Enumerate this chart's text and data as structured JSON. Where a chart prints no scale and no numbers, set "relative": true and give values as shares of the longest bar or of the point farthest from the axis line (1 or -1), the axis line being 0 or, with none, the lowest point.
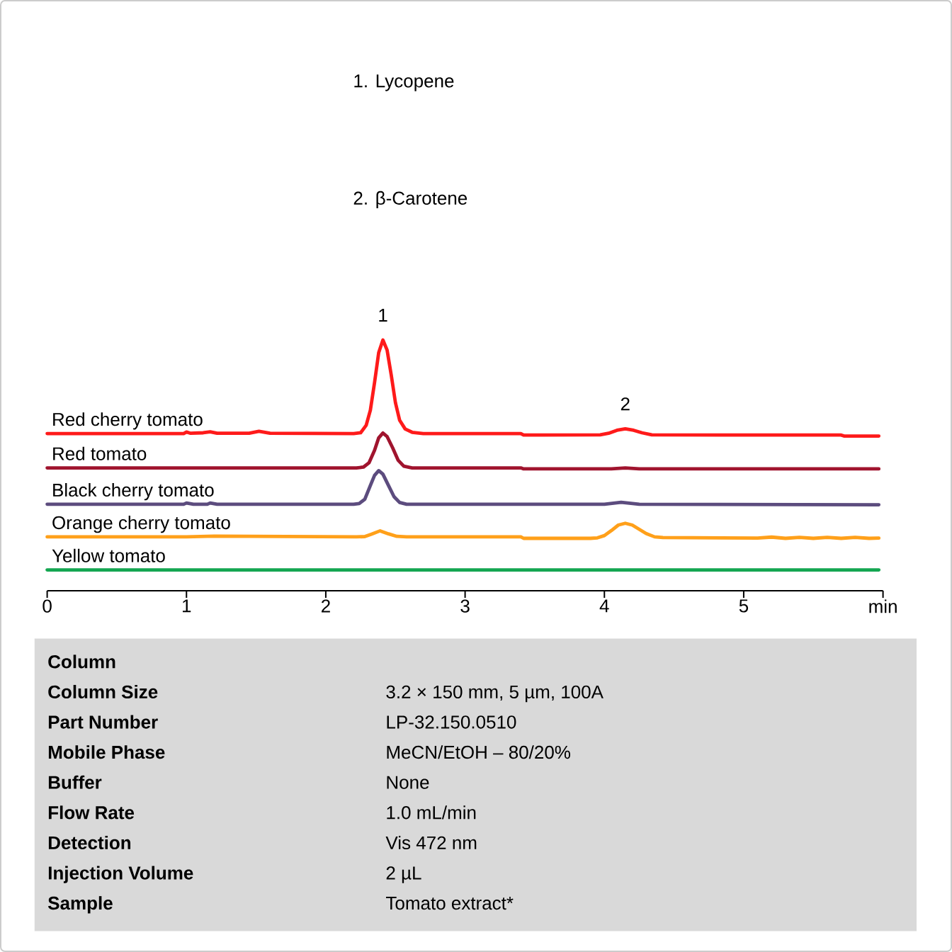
{
  "chart_data": {
    "type": "line",
    "relative": true,
    "xlim": [
      0,
      6
    ],
    "xticks": [
      0,
      1,
      2,
      3,
      4,
      5,
      {
        "value": 6,
        "label": "min"
      }
    ],
    "series": [
      {
        "name": "Red cherry tomato",
        "color": "#fe1a1a",
        "x": [
          0,
          0.5,
          0.98,
          1.0,
          1.03,
          1.12,
          1.17,
          1.22,
          1.45,
          1.52,
          1.6,
          2.2,
          2.25,
          2.29,
          2.32,
          2.35,
          2.38,
          2.41,
          2.44,
          2.47,
          2.5,
          2.53,
          2.57,
          2.62,
          2.7,
          3.4,
          3.42,
          3.97,
          4.03,
          4.09,
          4.15,
          4.21,
          4.27,
          4.34,
          5.1,
          5.7,
          5.72,
          5.97
        ],
        "values": [
          0.627,
          0.627,
          0.627,
          0.633,
          0.628,
          0.63,
          0.634,
          0.628,
          0.628,
          0.636,
          0.628,
          0.627,
          0.63,
          0.66,
          0.72,
          0.83,
          0.95,
          1.0,
          0.96,
          0.86,
          0.75,
          0.68,
          0.645,
          0.632,
          0.627,
          0.627,
          0.621,
          0.622,
          0.628,
          0.64,
          0.646,
          0.64,
          0.63,
          0.622,
          0.621,
          0.621,
          0.617,
          0.617
        ]
      },
      {
        "name": "Red tomato",
        "color": "#a0142e",
        "x": [
          0,
          1.0,
          1.7,
          2.22,
          2.27,
          2.31,
          2.35,
          2.38,
          2.41,
          2.44,
          2.48,
          2.52,
          2.56,
          2.62,
          3.4,
          3.42,
          4.05,
          4.15,
          4.25,
          5.97
        ],
        "values": [
          0.49,
          0.49,
          0.49,
          0.49,
          0.493,
          0.51,
          0.56,
          0.61,
          0.629,
          0.615,
          0.57,
          0.52,
          0.497,
          0.49,
          0.49,
          0.486,
          0.486,
          0.49,
          0.486,
          0.486
        ]
      },
      {
        "name": "Black cherry tomato",
        "color": "#5c4c7e",
        "x": [
          0,
          0.98,
          1.0,
          1.05,
          1.15,
          1.17,
          1.22,
          2.2,
          2.24,
          2.28,
          2.32,
          2.35,
          2.38,
          2.41,
          2.45,
          2.49,
          2.53,
          2.58,
          3.4,
          4.0,
          4.12,
          4.25,
          5.97
        ],
        "values": [
          0.345,
          0.345,
          0.35,
          0.345,
          0.345,
          0.35,
          0.345,
          0.345,
          0.348,
          0.365,
          0.42,
          0.46,
          0.479,
          0.465,
          0.42,
          0.375,
          0.352,
          0.345,
          0.345,
          0.345,
          0.353,
          0.345,
          0.343
        ]
      },
      {
        "name": "Orange cherry tomato",
        "color": "#ffa01a",
        "x": [
          0,
          1.0,
          1.2,
          2.22,
          2.28,
          2.33,
          2.39,
          2.45,
          2.51,
          2.58,
          3.4,
          3.42,
          3.9,
          3.95,
          4.0,
          4.05,
          4.1,
          4.15,
          4.2,
          4.25,
          4.3,
          4.36,
          4.42,
          5.1,
          5.2,
          5.3,
          5.4,
          5.5,
          5.6,
          5.7,
          5.8,
          5.9,
          5.97
        ],
        "values": [
          0.215,
          0.215,
          0.218,
          0.215,
          0.216,
          0.226,
          0.239,
          0.227,
          0.217,
          0.215,
          0.215,
          0.209,
          0.209,
          0.211,
          0.22,
          0.24,
          0.262,
          0.269,
          0.262,
          0.245,
          0.228,
          0.215,
          0.212,
          0.21,
          0.214,
          0.209,
          0.213,
          0.209,
          0.213,
          0.209,
          0.213,
          0.209,
          0.21
        ]
      },
      {
        "name": "Yellow tomato",
        "color": "#14a651",
        "x": [
          0,
          3.0,
          5.97
        ],
        "values": [
          0.083,
          0.083,
          0.083
        ]
      }
    ],
    "annotations": [
      "1. Lycopene",
      "2. β-Carotene",
      {
        "text": "1",
        "x": 2.41,
        "y": 1.0
      },
      {
        "text": "2",
        "x": 4.15,
        "y": 0.646
      },
      "Column",
      "Column Size",
      "3.2 × 150 mm, 5 µm, 100A",
      "Part Number",
      "LP-32.150.0510",
      "Mobile Phase",
      "MeCN/EtOH – 80/20%",
      "Buffer",
      "None",
      "Flow Rate",
      "1.0 mL/min",
      "Detection",
      "Vis 472 nm",
      "Injection Volume",
      "2 µL",
      "Sample",
      "Tomato extract*"
    ]
  }
}
